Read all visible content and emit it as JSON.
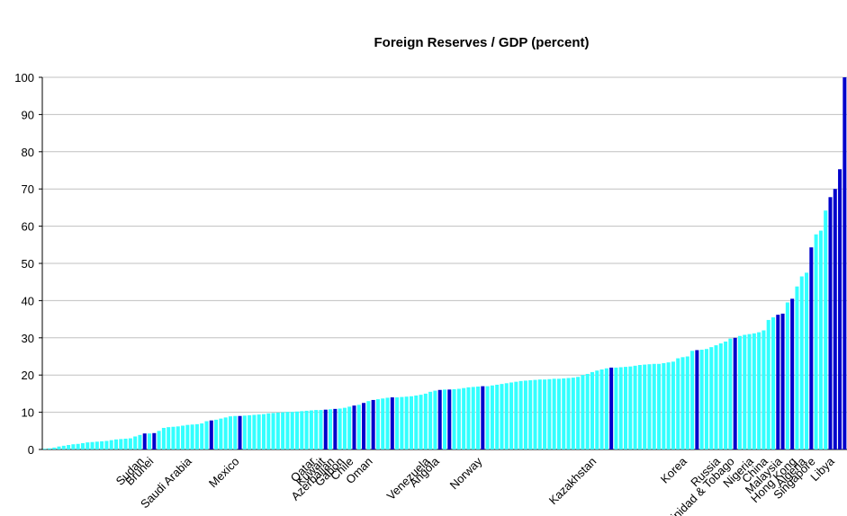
{
  "chart_data": {
    "type": "bar",
    "title": "Foreign Reserves / GDP (percent)",
    "categories": [
      null,
      null,
      null,
      null,
      null,
      null,
      null,
      null,
      null,
      null,
      null,
      null,
      null,
      null,
      null,
      null,
      null,
      null,
      null,
      null,
      null,
      "Sudan",
      null,
      "Brunei",
      null,
      null,
      null,
      null,
      null,
      null,
      null,
      "Saudi Arabia",
      null,
      null,
      null,
      null,
      null,
      null,
      null,
      null,
      null,
      "Mexico",
      null,
      null,
      null,
      null,
      null,
      null,
      null,
      null,
      null,
      null,
      null,
      null,
      null,
      null,
      null,
      "Qatar",
      null,
      "Kuwait",
      null,
      "Azerbaijan",
      null,
      "Gabon",
      null,
      "Chile",
      null,
      null,
      null,
      "Oman",
      null,
      null,
      null,
      null,
      null,
      null,
      null,
      null,
      null,
      null,
      null,
      "Venezuela",
      null,
      "Angola",
      null,
      null,
      null,
      null,
      null,
      null,
      null,
      null,
      "Norway",
      null,
      null,
      null,
      null,
      null,
      null,
      null,
      null,
      null,
      null,
      null,
      null,
      null,
      null,
      null,
      null,
      null,
      null,
      null,
      null,
      null,
      null,
      null,
      "Kazakhstan",
      null,
      null,
      null,
      null,
      null,
      null,
      null,
      null,
      null,
      null,
      null,
      null,
      null,
      null,
      null,
      null,
      null,
      null,
      "Korea",
      null,
      null,
      null,
      null,
      null,
      null,
      "Russia",
      null,
      null,
      "Trinidad & Tobago",
      null,
      null,
      null,
      "Nigeria",
      null,
      null,
      "China",
      null,
      null,
      "Malaysia",
      null,
      null,
      "Hong Kong",
      null,
      "Algeria",
      null,
      "Singapore",
      null,
      null,
      null,
      "Libya",
      null,
      null
    ],
    "values": [
      0.2,
      0.3,
      0.5,
      0.8,
      1.0,
      1.2,
      1.4,
      1.5,
      1.7,
      1.9,
      2.0,
      2.1,
      2.2,
      2.3,
      2.5,
      2.7,
      2.8,
      2.9,
      3.0,
      3.5,
      3.9,
      4.3,
      4.3,
      4.4,
      5.0,
      5.8,
      6.0,
      6.1,
      6.2,
      6.4,
      6.6,
      6.7,
      6.8,
      7.0,
      7.6,
      7.8,
      8.0,
      8.3,
      8.6,
      8.9,
      9.0,
      9.0,
      9.1,
      9.2,
      9.3,
      9.4,
      9.5,
      9.7,
      9.8,
      9.9,
      10.0,
      10.1,
      10.1,
      10.2,
      10.3,
      10.4,
      10.5,
      10.6,
      10.6,
      10.7,
      10.8,
      10.9,
      11.0,
      11.2,
      11.5,
      11.8,
      12.0,
      12.5,
      13.0,
      13.3,
      13.5,
      13.7,
      13.9,
      14.0,
      14.0,
      14.1,
      14.2,
      14.3,
      14.5,
      14.7,
      15.0,
      15.5,
      15.8,
      16.0,
      16.1,
      16.1,
      16.2,
      16.3,
      16.5,
      16.7,
      16.8,
      16.9,
      17.0,
      17.0,
      17.2,
      17.4,
      17.6,
      17.8,
      18.0,
      18.2,
      18.4,
      18.5,
      18.6,
      18.7,
      18.8,
      18.8,
      18.9,
      19.0,
      19.0,
      19.1,
      19.2,
      19.3,
      19.5,
      20.0,
      20.3,
      20.8,
      21.2,
      21.5,
      21.8,
      22.0,
      22.0,
      22.1,
      22.2,
      22.3,
      22.5,
      22.7,
      22.8,
      22.9,
      23.0,
      23.0,
      23.2,
      23.4,
      23.6,
      24.5,
      24.8,
      25.0,
      26.5,
      26.7,
      26.8,
      27.0,
      27.5,
      28.0,
      28.5,
      29.0,
      29.8,
      30.0,
      30.5,
      30.8,
      31.0,
      31.2,
      31.5,
      32.0,
      34.8,
      35.5,
      36.2,
      36.5,
      39.5,
      40.5,
      43.8,
      46.5,
      47.5,
      54.3,
      57.8,
      58.8,
      64.2,
      67.8,
      70.0,
      75.3,
      100
    ],
    "colors": [
      "#33ffff",
      "#33ffff",
      "#33ffff",
      "#33ffff",
      "#33ffff",
      "#33ffff",
      "#33ffff",
      "#33ffff",
      "#33ffff",
      "#33ffff",
      "#33ffff",
      "#33ffff",
      "#33ffff",
      "#33ffff",
      "#33ffff",
      "#33ffff",
      "#33ffff",
      "#33ffff",
      "#33ffff",
      "#33ffff",
      "#33ffff",
      "#0000cc",
      "#33ffff",
      "#0000cc",
      "#33ffff",
      "#33ffff",
      "#33ffff",
      "#33ffff",
      "#33ffff",
      "#33ffff",
      "#33ffff",
      "#33ffff",
      "#33ffff",
      "#33ffff",
      "#33ffff",
      "#0000cc",
      "#33ffff",
      "#33ffff",
      "#33ffff",
      "#33ffff",
      "#33ffff",
      "#0000cc",
      "#33ffff",
      "#33ffff",
      "#33ffff",
      "#33ffff",
      "#33ffff",
      "#33ffff",
      "#33ffff",
      "#33ffff",
      "#33ffff",
      "#33ffff",
      "#33ffff",
      "#33ffff",
      "#33ffff",
      "#33ffff",
      "#33ffff",
      "#33ffff",
      "#33ffff",
      "#0000cc",
      "#33ffff",
      "#0000cc",
      "#33ffff",
      "#33ffff",
      "#33ffff",
      "#0000cc",
      "#33ffff",
      "#0000cc",
      "#33ffff",
      "#0000cc",
      "#33ffff",
      "#33ffff",
      "#33ffff",
      "#0000cc",
      "#33ffff",
      "#33ffff",
      "#33ffff",
      "#33ffff",
      "#33ffff",
      "#33ffff",
      "#33ffff",
      "#33ffff",
      "#33ffff",
      "#0000cc",
      "#33ffff",
      "#0000cc",
      "#33ffff",
      "#33ffff",
      "#33ffff",
      "#33ffff",
      "#33ffff",
      "#33ffff",
      "#0000cc",
      "#33ffff",
      "#33ffff",
      "#33ffff",
      "#33ffff",
      "#33ffff",
      "#33ffff",
      "#33ffff",
      "#33ffff",
      "#33ffff",
      "#33ffff",
      "#33ffff",
      "#33ffff",
      "#33ffff",
      "#33ffff",
      "#33ffff",
      "#33ffff",
      "#33ffff",
      "#33ffff",
      "#33ffff",
      "#33ffff",
      "#33ffff",
      "#33ffff",
      "#33ffff",
      "#33ffff",
      "#33ffff",
      "#33ffff",
      "#0000cc",
      "#33ffff",
      "#33ffff",
      "#33ffff",
      "#33ffff",
      "#33ffff",
      "#33ffff",
      "#33ffff",
      "#33ffff",
      "#33ffff",
      "#33ffff",
      "#33ffff",
      "#33ffff",
      "#33ffff",
      "#33ffff",
      "#33ffff",
      "#33ffff",
      "#33ffff",
      "#0000cc",
      "#33ffff",
      "#33ffff",
      "#33ffff",
      "#33ffff",
      "#33ffff",
      "#33ffff",
      "#33ffff",
      "#0000cc",
      "#33ffff",
      "#33ffff",
      "#33ffff",
      "#33ffff",
      "#33ffff",
      "#33ffff",
      "#33ffff",
      "#33ffff",
      "#0000cc",
      "#0000cc",
      "#33ffff",
      "#0000cc",
      "#33ffff",
      "#33ffff",
      "#33ffff",
      "#0000cc",
      "#33ffff",
      "#33ffff",
      "#33ffff",
      "#0000cc",
      "#0000cc",
      "#0000cc",
      "#0000cc"
    ],
    "ylim": [
      0,
      100
    ],
    "yticks": [
      0,
      10,
      20,
      30,
      40,
      50,
      60,
      70,
      80,
      90,
      100
    ],
    "grid": true
  }
}
